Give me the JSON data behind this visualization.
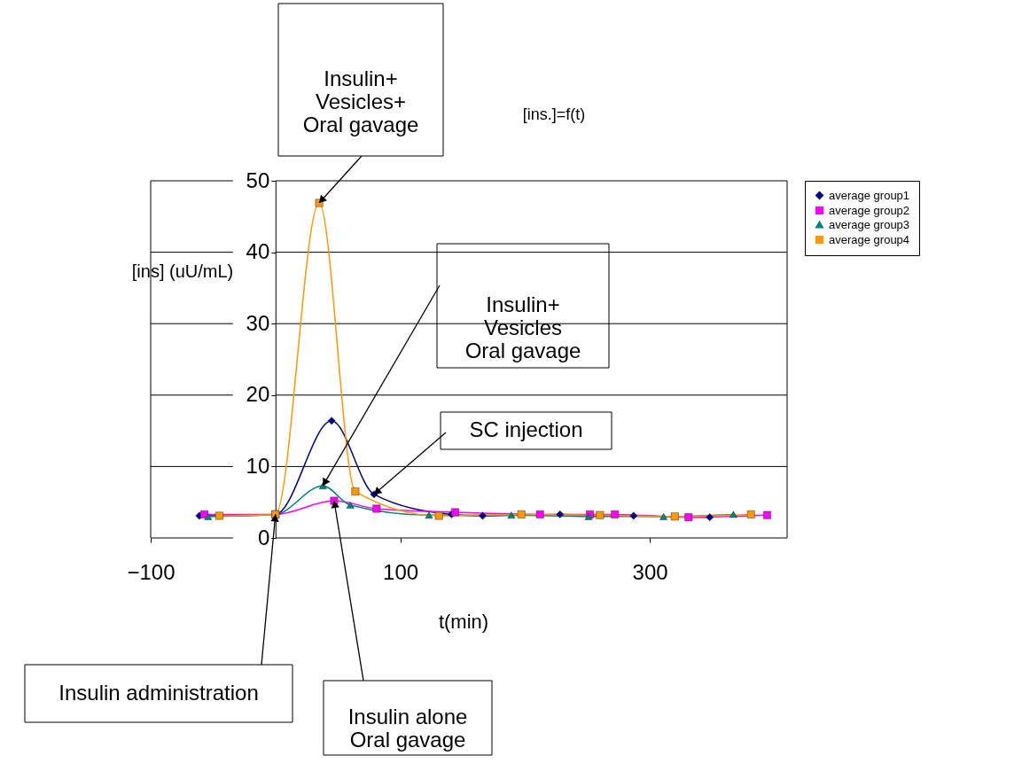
{
  "chart_data": {
    "type": "line",
    "title": "[ins.]=f(t)",
    "xlabel": "t(min)",
    "ylabel": "[ins] (uU/mL)",
    "xlim": [
      -100,
      410
    ],
    "xticks": [
      -100,
      100,
      300
    ],
    "ylim": [
      0,
      50
    ],
    "yticks": [
      0,
      10,
      20,
      30,
      40,
      50
    ],
    "grid": "y",
    "legend": "right",
    "line_style": "solid",
    "series": [
      {
        "name": "average group1",
        "color": "#000080",
        "marker": "diamond",
        "x": [
          -61,
          0,
          45,
          79,
          141,
          166,
          228,
          287,
          348
        ],
        "values": [
          3.1,
          3.3,
          16.4,
          6.1,
          3.3,
          3.1,
          3.3,
          3.1,
          2.9
        ]
      },
      {
        "name": "average group2",
        "color": "#ff00ff",
        "marker": "square",
        "x": [
          -57,
          0,
          47,
          81,
          144,
          212,
          252,
          272,
          331,
          394
        ],
        "values": [
          3.3,
          3.3,
          5.2,
          4.1,
          3.6,
          3.3,
          3.3,
          3.3,
          2.9,
          3.2
        ]
      },
      {
        "name": "average group3",
        "color": "#008080",
        "marker": "triangle",
        "x": [
          -54,
          0,
          38,
          60,
          123,
          189,
          251,
          311,
          367
        ],
        "values": [
          3.0,
          3.3,
          7.3,
          4.6,
          3.2,
          3.2,
          3.0,
          3.0,
          3.3
        ]
      },
      {
        "name": "average group4",
        "color": "#ff9900",
        "marker": "square",
        "x": [
          -45,
          0,
          35,
          64,
          131,
          197,
          260,
          320,
          381
        ],
        "values": [
          3.1,
          3.3,
          46.9,
          6.5,
          3.1,
          3.3,
          3.2,
          3.0,
          3.3
        ]
      }
    ],
    "annotations": [
      {
        "text": "Insulin+\nVesicles+\nOral gavage",
        "x": 35,
        "y": 46.9
      },
      {
        "text": "Insulin+\nVesicles\nOral gavage",
        "x": 38,
        "y": 7.3
      },
      {
        "text": "SC injection",
        "x": 79,
        "y": 6.1
      },
      {
        "text": "Insulin administration",
        "x": 0,
        "y": 3.3
      },
      {
        "text": "Insulin alone\nOral gavage",
        "x": 47,
        "y": 5.2
      }
    ]
  }
}
